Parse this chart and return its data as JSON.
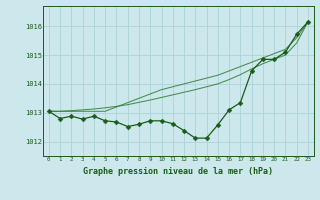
{
  "title": "Graphe pression niveau de la mer (hPa)",
  "bg_color": "#cce8ec",
  "grid_color": "#aad4d8",
  "line_color_dark": "#1a5c1a",
  "line_color_mid": "#2e7d32",
  "line_color_light": "#4caf50",
  "xlim": [
    -0.5,
    23.5
  ],
  "ylim": [
    1011.5,
    1016.7
  ],
  "xticks": [
    0,
    1,
    2,
    3,
    4,
    5,
    6,
    7,
    8,
    9,
    10,
    11,
    12,
    13,
    14,
    15,
    16,
    17,
    18,
    19,
    20,
    21,
    22,
    23
  ],
  "yticks": [
    1012,
    1013,
    1014,
    1015,
    1016
  ],
  "x": [
    0,
    1,
    2,
    3,
    4,
    5,
    6,
    7,
    8,
    9,
    10,
    11,
    12,
    13,
    14,
    15,
    16,
    17,
    18,
    19,
    20,
    21,
    22,
    23
  ],
  "y_measured": [
    1013.05,
    1012.8,
    1012.88,
    1012.78,
    1012.88,
    1012.72,
    1012.68,
    1012.52,
    1012.6,
    1012.72,
    1012.72,
    1012.62,
    1012.38,
    1012.12,
    1012.12,
    1012.58,
    1013.1,
    1013.35,
    1014.45,
    1014.85,
    1014.85,
    1015.1,
    1015.72,
    1016.15
  ],
  "y_smooth1": [
    1013.05,
    1013.05,
    1013.05,
    1013.05,
    1013.05,
    1013.05,
    1013.2,
    1013.35,
    1013.5,
    1013.65,
    1013.8,
    1013.9,
    1014.0,
    1014.1,
    1014.2,
    1014.3,
    1014.45,
    1014.6,
    1014.75,
    1014.9,
    1015.05,
    1015.2,
    1015.6,
    1016.15
  ],
  "y_smooth2": [
    1013.05,
    1013.05,
    1013.07,
    1013.1,
    1013.13,
    1013.17,
    1013.22,
    1013.28,
    1013.36,
    1013.44,
    1013.53,
    1013.62,
    1013.71,
    1013.8,
    1013.9,
    1014.0,
    1014.15,
    1014.32,
    1014.52,
    1014.7,
    1014.85,
    1015.0,
    1015.42,
    1016.15
  ],
  "marker": "D",
  "marker_size": 2.5
}
